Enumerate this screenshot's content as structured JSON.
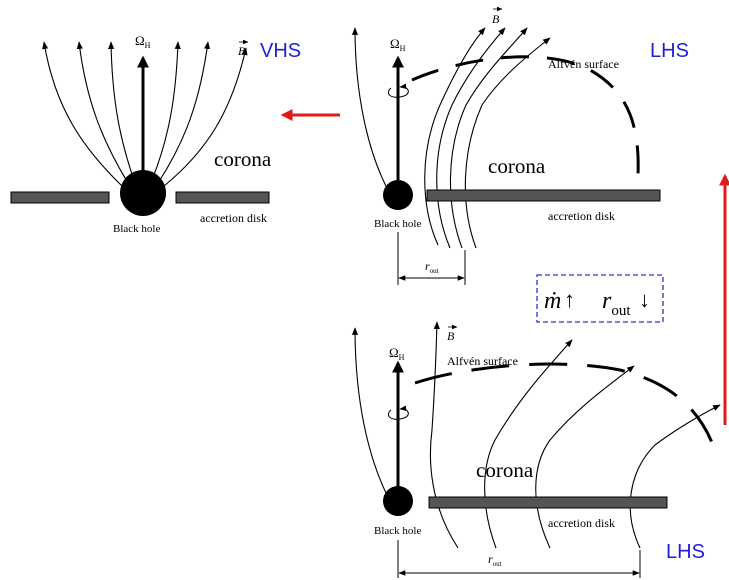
{
  "colors": {
    "state_label": "#1f1fd6",
    "transition_arrow": "#e11b1b",
    "disk": "#555555",
    "box_border": "#2a35c8",
    "ink": "#000000"
  },
  "panels": {
    "vhs": {
      "state_label": "VHS",
      "omega": "Ω",
      "omega_sub": "H",
      "b_field": "B",
      "corona": "corona",
      "black_hole": "Black hole",
      "disk": "accretion disk"
    },
    "lhs_top": {
      "state_label": "LHS",
      "omega": "Ω",
      "omega_sub": "H",
      "b_field": "B",
      "alfven": "Alfvén surface",
      "corona": "corona",
      "black_hole": "Black hole",
      "disk": "accretion disk",
      "r_out": "r",
      "r_out_sub": "out"
    },
    "lhs_bottom": {
      "state_label": "LHS",
      "omega": "Ω",
      "omega_sub": "H",
      "b_field": "B",
      "alfven": "Alfvén surface",
      "corona": "corona",
      "black_hole": "Black hole",
      "disk": "accretion disk",
      "r_out": "r",
      "r_out_sub": "out"
    }
  },
  "condition_box": {
    "mdot": "ṁ",
    "up_arrow": "↑",
    "r": "r",
    "r_sub": "out",
    "down_arrow": "↓"
  }
}
